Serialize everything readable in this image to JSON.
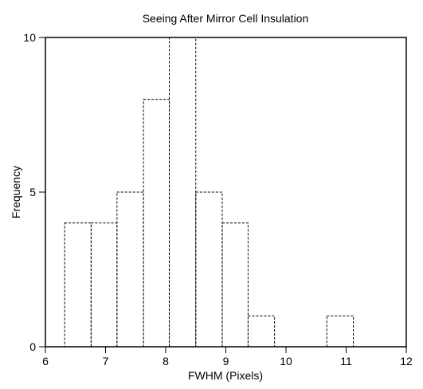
{
  "chart_data": {
    "type": "bar",
    "title": "Seeing After Mirror Cell Insulation",
    "xlabel": "FWHM (Pixels)",
    "ylabel": "Frequency",
    "xlim": [
      6,
      12
    ],
    "ylim": [
      0,
      10
    ],
    "x_ticks": [
      "6",
      "7",
      "8",
      "9",
      "10",
      "11",
      "12"
    ],
    "y_ticks": [
      "0",
      "5",
      "10"
    ],
    "grid": false,
    "bins": [
      {
        "x0": 6.32,
        "x1": 6.76,
        "value": 4
      },
      {
        "x0": 6.76,
        "x1": 7.19,
        "value": 4
      },
      {
        "x0": 7.19,
        "x1": 7.63,
        "value": 5
      },
      {
        "x0": 7.63,
        "x1": 8.06,
        "value": 8
      },
      {
        "x0": 8.06,
        "x1": 8.5,
        "value": 10
      },
      {
        "x0": 8.5,
        "x1": 8.94,
        "value": 5
      },
      {
        "x0": 8.94,
        "x1": 9.37,
        "value": 4
      },
      {
        "x0": 9.37,
        "x1": 9.81,
        "value": 1
      },
      {
        "x0": 10.68,
        "x1": 11.12,
        "value": 1
      }
    ]
  }
}
